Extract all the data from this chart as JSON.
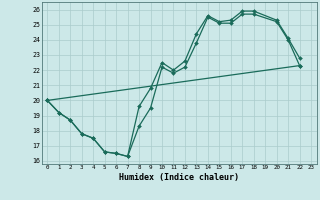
{
  "xlabel": "Humidex (Indice chaleur)",
  "bg_color": "#cce8e8",
  "grid_color": "#aacccc",
  "line_color": "#1a6b5a",
  "xlim": [
    -0.5,
    23.5
  ],
  "ylim": [
    15.8,
    26.5
  ],
  "xticks": [
    0,
    1,
    2,
    3,
    4,
    5,
    6,
    7,
    8,
    9,
    10,
    11,
    12,
    13,
    14,
    15,
    16,
    17,
    18,
    19,
    20,
    21,
    22,
    23
  ],
  "yticks": [
    16,
    17,
    18,
    19,
    20,
    21,
    22,
    23,
    24,
    25,
    26
  ],
  "line1_x": [
    0,
    1,
    2,
    3,
    4,
    5,
    6,
    7,
    8,
    9,
    10,
    11,
    12,
    13,
    14,
    15,
    16,
    17,
    18,
    20,
    21,
    22
  ],
  "line1_y": [
    20,
    19.2,
    18.7,
    17.8,
    17.5,
    16.6,
    16.5,
    16.3,
    18.3,
    19.5,
    22.2,
    21.8,
    22.2,
    23.8,
    25.5,
    25.1,
    25.1,
    25.7,
    25.7,
    25.2,
    24.0,
    22.3
  ],
  "line2_x": [
    0,
    1,
    2,
    3,
    4,
    5,
    6,
    7,
    8,
    9,
    10,
    11,
    12,
    13,
    14,
    15,
    16,
    17,
    18,
    20,
    21,
    22
  ],
  "line2_y": [
    20,
    19.2,
    18.7,
    17.8,
    17.5,
    16.6,
    16.5,
    16.3,
    19.6,
    20.8,
    22.5,
    22.0,
    22.6,
    24.4,
    25.6,
    25.2,
    25.3,
    25.9,
    25.9,
    25.3,
    24.1,
    22.8
  ],
  "line3_x": [
    0,
    22
  ],
  "line3_y": [
    20,
    22.3
  ]
}
